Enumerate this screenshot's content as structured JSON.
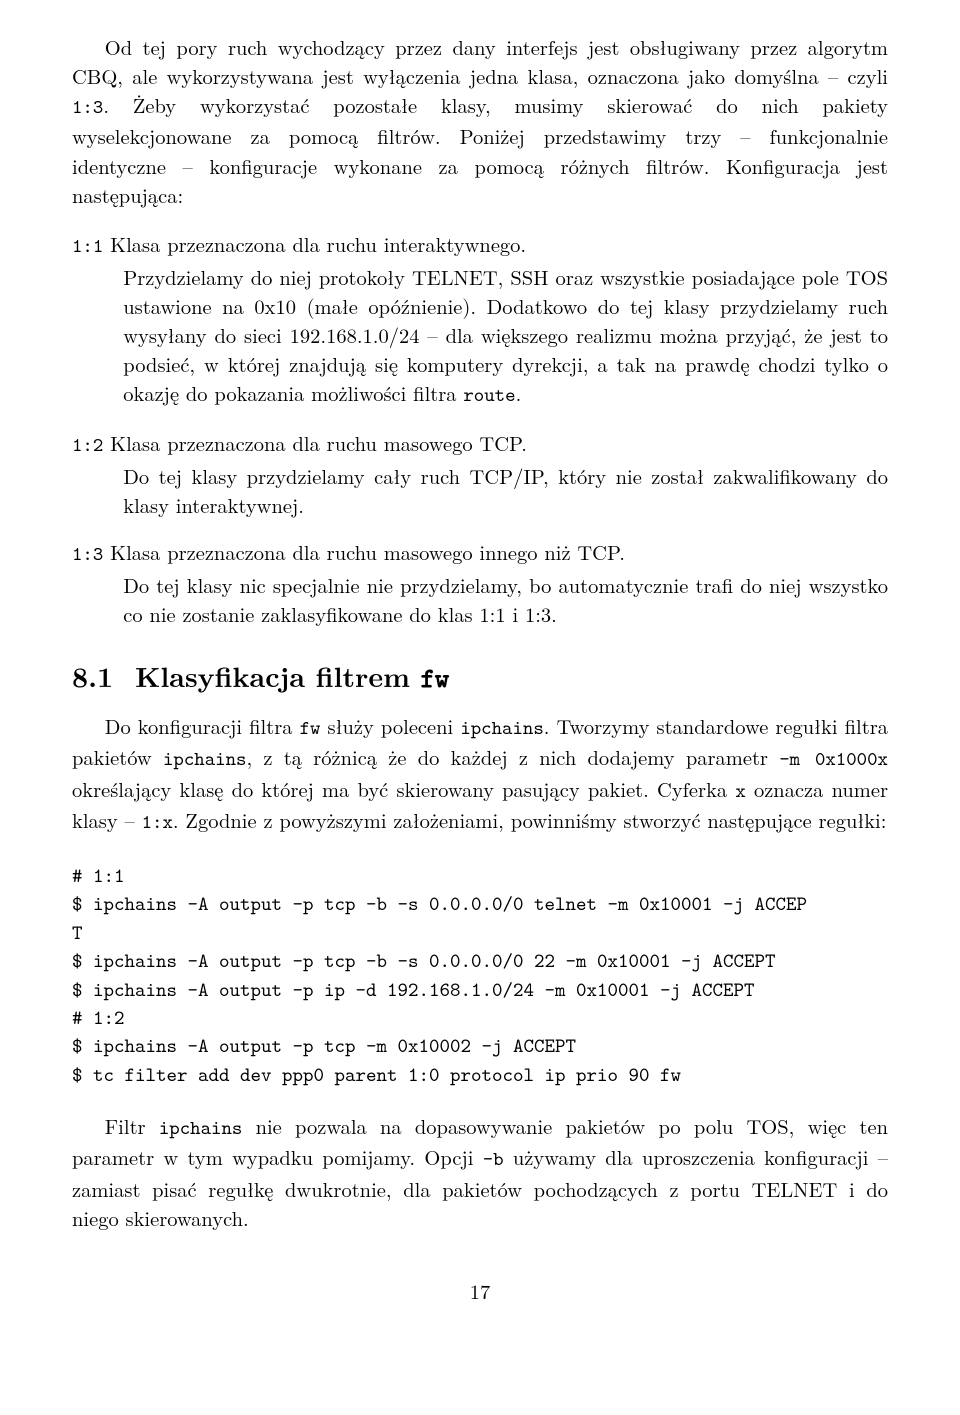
{
  "intro": {
    "p1a": "Od tej pory ruch wychodzący przez dany interfejs jest obsługiwany przez algorytm CBQ, ale wykorzystywana jest wyłączenia jedna klasa, oznaczona jako domyślna – czyli ",
    "p1code": "1:3",
    "p1b": ". Żeby wykorzystać pozostałe klasy, musimy skierować do nich pakiety wyselekcjonowane za pomocą filtrów. Poniżej przedstawimy trzy – funkcjonalnie identyczne – konfiguracje wykonane za pomocą różnych filtrów. Konfiguracja jest następująca:"
  },
  "list": {
    "i1": {
      "term": "1:1",
      "head": " Klasa przeznaczona dla ruchu interaktywnego.",
      "body_a": "Przydzielamy do niej protokoły TELNET, SSH oraz wszystkie posiadające pole TOS ustawione na 0x10 (małe opóźnienie). Dodatkowo do tej klasy przydzielamy ruch wysyłany do sieci 192.168.1.0/24 – dla większego realizmu można przyjąć, że jest to podsieć, w której znajdują się komputery dyrekcji, a tak na prawdę chodzi tylko o okazję do pokazania możliwości filtra ",
      "body_code": "route",
      "body_b": "."
    },
    "i2": {
      "term": "1:2",
      "head": " Klasa przeznaczona dla ruchu masowego TCP.",
      "body": "Do tej klasy przydzielamy cały ruch TCP/IP, który nie został zakwalifikowany do klasy interaktywnej."
    },
    "i3": {
      "term": "1:3",
      "head": " Klasa przeznaczona dla ruchu masowego innego niż TCP.",
      "body": "Do tej klasy nic specjalnie nie przydzielamy, bo automatycznie trafi do niej wszystko co nie zostanie zaklasyfikowane do klas 1:1 i 1:3."
    }
  },
  "section": {
    "num": "8.1",
    "title_a": "Klasyfikacja filtrem ",
    "title_code": "fw"
  },
  "sec_para": {
    "a": "Do konfiguracji filtra ",
    "c1": "fw",
    "b": " służy poleceni ",
    "c2": "ipchains",
    "c": ". Tworzymy standardowe regułki filtra pakietów ",
    "c3": "ipchains",
    "d": ", z tą różnicą że do każdej z nich dodajemy parametr ",
    "c4": "-m 0x1000x",
    "e": " określający klasę do której ma być skierowany pasujący pakiet. Cyferka ",
    "c5": "x",
    "f": " oznacza numer klasy – ",
    "c6": "1:x",
    "g": ". Zgodnie z powyższymi założeniami, powinniśmy stworzyć następujące regułki:"
  },
  "code": "# 1:1\n$ ipchains -A output -p tcp -b -s 0.0.0.0/0 telnet -m 0x10001 -j ACCEP\nT\n$ ipchains -A output -p tcp -b -s 0.0.0.0/0 22 -m 0x10001 -j ACCEPT\n$ ipchains -A output -p ip -d 192.168.1.0/24 -m 0x10001 -j ACCEPT\n# 1:2\n$ ipchains -A output -p tcp -m 0x10002 -j ACCEPT\n$ tc filter add dev ppp0 parent 1:0 protocol ip prio 90 fw",
  "closing": {
    "a": "Filtr ",
    "c1": "ipchains",
    "b": " nie pozwala na dopasowywanie pakietów po polu TOS, więc ten parametr w tym wypadku pomijamy. Opcji ",
    "c2": "-b",
    "c": " używamy dla uproszczenia konfiguracji – zamiast pisać regułkę dwukrotnie, dla pakietów pochodzących z portu TELNET i do niego skierowanych."
  },
  "pageno": "17"
}
